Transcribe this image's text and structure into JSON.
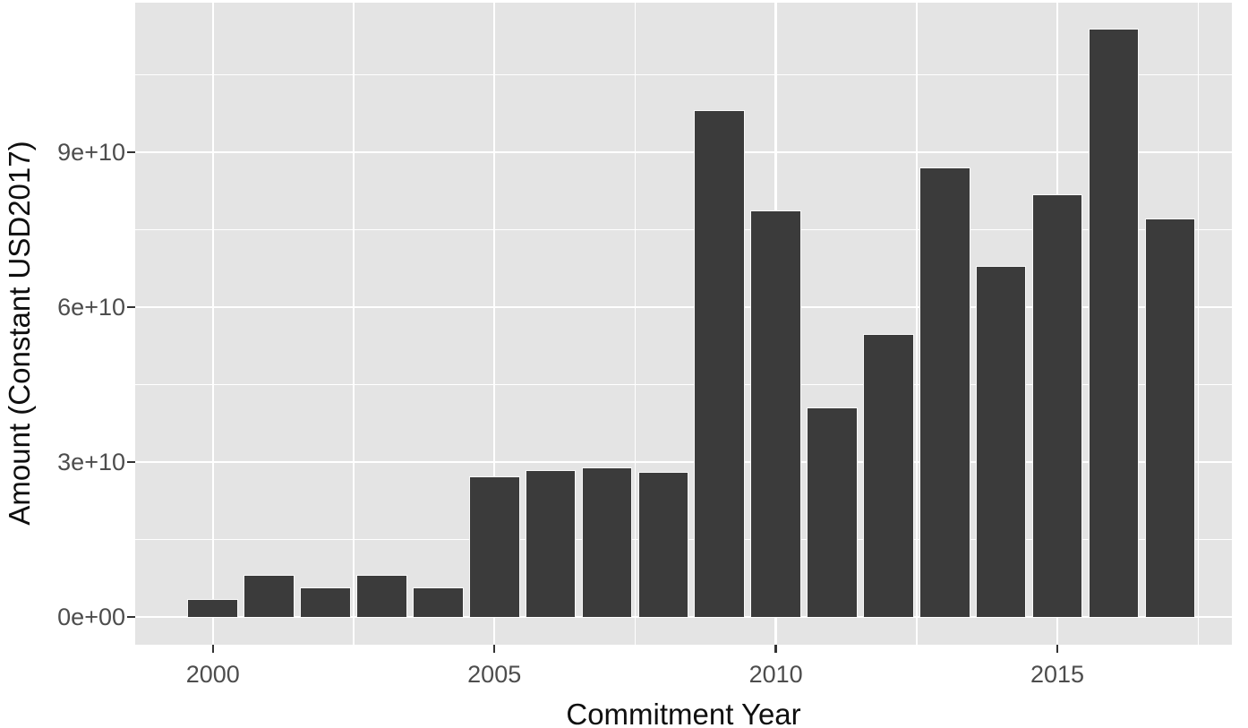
{
  "chart_data": {
    "type": "bar",
    "title": "",
    "xlabel": "Commitment Year",
    "ylabel": "Amount (Constant USD2017)",
    "categories": [
      2000,
      2001,
      2002,
      2003,
      2004,
      2005,
      2006,
      2007,
      2008,
      2009,
      2010,
      2011,
      2012,
      2013,
      2014,
      2015,
      2016,
      2017
    ],
    "values": [
      3500000000.0,
      8200000000.0,
      5700000000.0,
      8200000000.0,
      5700000000.0,
      27200000000.0,
      28400000000.0,
      29000000000.0,
      28100000000.0,
      98100000000.0,
      78700000000.0,
      40500000000.0,
      54800000000.0,
      87100000000.0,
      67900000000.0,
      81900000000.0,
      113900000000.0,
      77100000000.0
    ],
    "x_axis": {
      "tick_values": [
        2000,
        2005,
        2010,
        2015
      ],
      "tick_labels": [
        "2000",
        "2005",
        "2010",
        "2015"
      ],
      "minor_tick_values": [
        2002.5,
        2007.5,
        2012.5,
        2017.5
      ],
      "range": [
        1998.62,
        2018.1
      ]
    },
    "y_axis": {
      "tick_values": [
        0,
        30000000000.0,
        60000000000.0,
        90000000000.0
      ],
      "tick_labels": [
        "0e+00",
        "3e+10",
        "6e+10",
        "9e+10"
      ],
      "minor_tick_values": [
        15000000000.0,
        45000000000.0,
        75000000000.0,
        105000000000.0
      ],
      "range": [
        0,
        119000000000.0
      ]
    },
    "legend": "none",
    "grid": "major and minor white gridlines on gray panel",
    "colors": {
      "bar": "#3b3b3b",
      "panel_background": "#e4e4e4",
      "gridline": "#ffffff",
      "tick_label": "#4d4d4d",
      "axis_title": "#0f0f0f",
      "tick_mark": "#333333",
      "outer_background": "#ffffff"
    }
  }
}
